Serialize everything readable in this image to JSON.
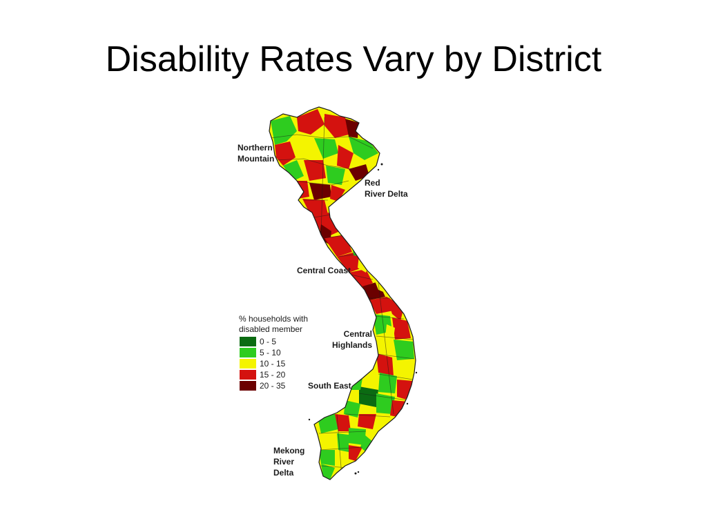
{
  "slide": {
    "title": "Disability Rates Vary by District"
  },
  "map": {
    "colors": {
      "dark_green": "#0b6b12",
      "green": "#2ecc1f",
      "yellow": "#f4f400",
      "red": "#d4120f",
      "dark_red": "#6b0000",
      "border": "#1a1a1a"
    },
    "regions": {
      "northern_mountain": "Northern\nMountain",
      "red_river_delta": "Red\nRiver Delta",
      "central_coast": "Central Coast",
      "central_highlands": "Central\nHighlands",
      "south_east": "South East",
      "mekong_river_delta": "Mekong\nRiver\nDelta"
    }
  },
  "legend": {
    "title": "% households with\ndisabled member",
    "items": [
      {
        "label": "0 - 5",
        "color": "#0b6b12"
      },
      {
        "label": "5 - 10",
        "color": "#2ecc1f"
      },
      {
        "label": "10 - 15",
        "color": "#f4f400"
      },
      {
        "label": "15 - 20",
        "color": "#d4120f"
      },
      {
        "label": "20 - 35",
        "color": "#6b0000"
      }
    ]
  }
}
